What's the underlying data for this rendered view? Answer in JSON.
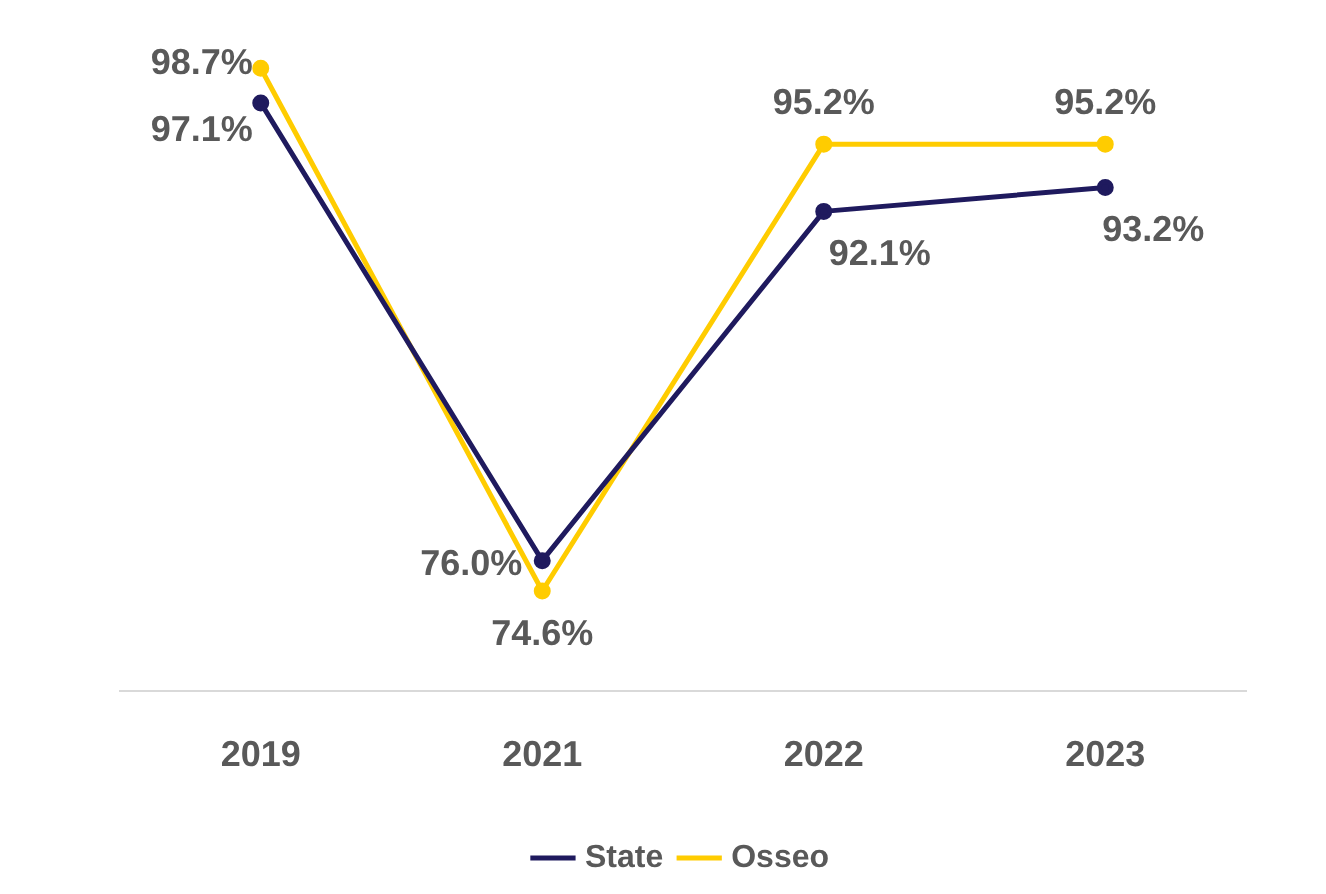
{
  "chart_data": {
    "type": "line",
    "categories": [
      "2019",
      "2021",
      "2022",
      "2023"
    ],
    "series": [
      {
        "name": "State",
        "color": "#1f1a5e",
        "values": [
          97.1,
          76.0,
          92.1,
          93.2
        ],
        "value_labels": [
          "97.1%",
          "76.0%",
          "92.1%",
          "93.2%"
        ]
      },
      {
        "name": "Osseo",
        "color": "#ffcc00",
        "values": [
          98.7,
          74.6,
          95.2,
          95.2
        ],
        "value_labels": [
          "98.7%",
          "74.6%",
          "95.2%",
          "95.2%"
        ]
      }
    ],
    "grid": false,
    "legend": "bottom",
    "marker": "circle",
    "line_style": "solid"
  }
}
